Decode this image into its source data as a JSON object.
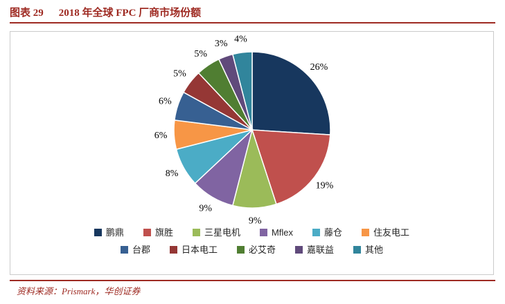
{
  "header": {
    "label": "图表 29",
    "title": "2018 年全球 FPC 厂商市场份额"
  },
  "footer": {
    "source": "资料来源：Prismark，华创证券"
  },
  "colors": {
    "accent": "#9E2A22",
    "border": "#CBCBCB",
    "label_text": "#000000"
  },
  "chart_data": {
    "type": "pie",
    "title": "2018 年全球 FPC 厂商市场份额",
    "unit": "%",
    "start_angle_deg": -90,
    "direction": "clockwise",
    "legend_position": "bottom",
    "legend_rows": [
      6,
      5
    ],
    "categories": [
      "鹏鼎",
      "旗胜",
      "三星电机",
      "Mflex",
      "藤仓",
      "住友电工",
      "台郡",
      "日本电工",
      "必艾奇",
      "嘉联益",
      "其他"
    ],
    "values": [
      26,
      19,
      9,
      9,
      8,
      6,
      6,
      5,
      5,
      3,
      4
    ],
    "labels": [
      "26%",
      "19%",
      "9%",
      "9%",
      "8%",
      "6%",
      "6%",
      "5%",
      "5%",
      "3%",
      "4%"
    ],
    "slice_colors": [
      "#17375E",
      "#C0504D",
      "#9BBB59",
      "#8064A2",
      "#4BACC6",
      "#F79646",
      "#376092",
      "#953735",
      "#507E32",
      "#604A7B",
      "#31859C"
    ]
  }
}
